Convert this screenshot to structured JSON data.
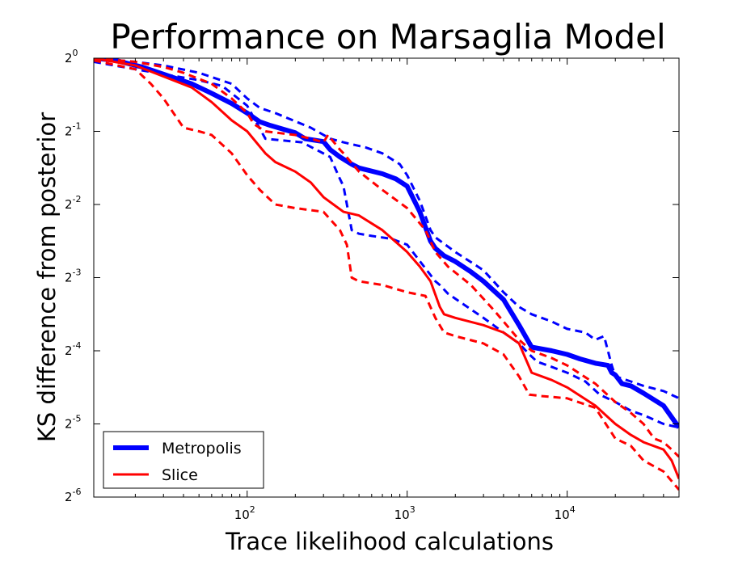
{
  "chart_data": {
    "type": "line",
    "title": "Performance on Marsaglia Model",
    "xlabel": "Trace likelihood calculations",
    "ylabel": "KS difference from posterior",
    "xscale": "log10",
    "yscale": "log2",
    "xlim": [
      11,
      50000
    ],
    "ylim": [
      -6,
      0
    ],
    "x_ticks": [
      {
        "value": 100,
        "base": "10",
        "exp": "2"
      },
      {
        "value": 1000,
        "base": "10",
        "exp": "3"
      },
      {
        "value": 10000,
        "base": "10",
        "exp": "4"
      }
    ],
    "y_ticks": [
      {
        "value": 0,
        "base": "2",
        "exp": "0"
      },
      {
        "value": -1,
        "base": "2",
        "exp": "-1"
      },
      {
        "value": -2,
        "base": "2",
        "exp": "-2"
      },
      {
        "value": -3,
        "base": "2",
        "exp": "-3"
      },
      {
        "value": -4,
        "base": "2",
        "exp": "-4"
      },
      {
        "value": -5,
        "base": "2",
        "exp": "-5"
      },
      {
        "value": -6,
        "base": "2",
        "exp": "-6"
      }
    ],
    "legend_position": "lower-left",
    "series": [
      {
        "name": "Metropolis",
        "role": "mean",
        "color": "#0000ff",
        "style": "solid-thick",
        "x": [
          11,
          15,
          22,
          30,
          45,
          60,
          80,
          100,
          120,
          140,
          200,
          230,
          300,
          330,
          380,
          450,
          500,
          700,
          850,
          1000,
          1200,
          1400,
          1500,
          1700,
          2000,
          2500,
          3000,
          4000,
          5000,
          6000,
          8000,
          10000,
          12000,
          15000,
          18000,
          19000,
          20000,
          22000,
          25000,
          30000,
          40000,
          50000
        ],
        "y": [
          0.0,
          -0.03,
          -0.12,
          -0.22,
          -0.35,
          -0.48,
          -0.62,
          -0.75,
          -0.87,
          -0.92,
          -1.02,
          -1.1,
          -1.14,
          -1.25,
          -1.35,
          -1.45,
          -1.5,
          -1.58,
          -1.65,
          -1.75,
          -2.1,
          -2.5,
          -2.6,
          -2.7,
          -2.78,
          -2.92,
          -3.05,
          -3.3,
          -3.65,
          -3.95,
          -4.0,
          -4.05,
          -4.11,
          -4.17,
          -4.2,
          -4.3,
          -4.33,
          -4.45,
          -4.48,
          -4.58,
          -4.75,
          -5.05
        ]
      },
      {
        "name": "Metropolis upper bound",
        "role": "bound",
        "color": "#0000ff",
        "style": "dashed",
        "x": [
          11,
          20,
          30,
          50,
          80,
          100,
          120,
          150,
          250,
          330,
          400,
          550,
          700,
          900,
          1000,
          1200,
          1400,
          1500,
          2000,
          3000,
          4000,
          5000,
          6000,
          8000,
          10000,
          13000,
          15000,
          17000,
          19000,
          20000,
          25000,
          30000,
          40000,
          50000
        ],
        "y": [
          0.0,
          -0.05,
          -0.1,
          -0.2,
          -0.35,
          -0.55,
          -0.68,
          -0.75,
          -0.95,
          -1.1,
          -1.15,
          -1.22,
          -1.3,
          -1.45,
          -1.6,
          -1.95,
          -2.35,
          -2.45,
          -2.65,
          -2.9,
          -3.2,
          -3.4,
          -3.5,
          -3.6,
          -3.7,
          -3.75,
          -3.85,
          -3.8,
          -4.2,
          -4.35,
          -4.42,
          -4.48,
          -4.55,
          -4.65
        ]
      },
      {
        "name": "Metropolis lower bound",
        "role": "bound",
        "color": "#0000ff",
        "style": "dashed",
        "x": [
          11,
          20,
          30,
          50,
          70,
          100,
          130,
          160,
          220,
          270,
          330,
          380,
          400,
          450,
          500,
          600,
          800,
          1000,
          1500,
          1600,
          1800,
          2200,
          3000,
          4000,
          5000,
          5800,
          6500,
          8000,
          10000,
          13000,
          16000,
          20000,
          25000,
          30000,
          40000,
          50000
        ],
        "y": [
          -0.05,
          -0.15,
          -0.22,
          -0.3,
          -0.38,
          -0.65,
          -1.1,
          -1.12,
          -1.15,
          -1.25,
          -1.35,
          -1.65,
          -1.75,
          -2.35,
          -2.4,
          -2.43,
          -2.47,
          -2.55,
          -3.05,
          -3.1,
          -3.22,
          -3.35,
          -3.55,
          -3.75,
          -3.9,
          -4.05,
          -4.15,
          -4.22,
          -4.3,
          -4.42,
          -4.6,
          -4.7,
          -4.82,
          -4.88,
          -5.0,
          -5.05
        ]
      },
      {
        "name": "Slice",
        "role": "mean",
        "color": "#ff0000",
        "style": "solid",
        "x": [
          11,
          20,
          30,
          45,
          60,
          80,
          100,
          130,
          150,
          200,
          250,
          300,
          400,
          500,
          700,
          1000,
          1200,
          1400,
          1600,
          1700,
          2000,
          3000,
          4000,
          5000,
          6000,
          8000,
          10000,
          15000,
          20000,
          25000,
          30000,
          40000,
          45000,
          50000
        ],
        "y": [
          0.0,
          -0.1,
          -0.25,
          -0.4,
          -0.6,
          -0.85,
          -1.0,
          -1.3,
          -1.42,
          -1.55,
          -1.7,
          -1.9,
          -2.1,
          -2.15,
          -2.35,
          -2.65,
          -2.85,
          -3.05,
          -3.4,
          -3.5,
          -3.55,
          -3.65,
          -3.75,
          -3.9,
          -4.3,
          -4.4,
          -4.5,
          -4.75,
          -5.0,
          -5.15,
          -5.25,
          -5.35,
          -5.5,
          -5.75
        ]
      },
      {
        "name": "Slice upper bound",
        "role": "bound",
        "color": "#ff0000",
        "style": "dashed",
        "x": [
          11,
          20,
          30,
          40,
          60,
          80,
          100,
          110,
          130,
          200,
          250,
          300,
          320,
          380,
          400,
          500,
          700,
          1000,
          1300,
          1500,
          1800,
          2500,
          3500,
          5000,
          6000,
          8000,
          10000,
          15000,
          20000,
          25000,
          30000,
          35000,
          40000,
          45000,
          50000
        ],
        "y": [
          0.0,
          -0.05,
          -0.12,
          -0.2,
          -0.35,
          -0.55,
          -0.75,
          -0.9,
          -1.0,
          -1.05,
          -1.1,
          -1.15,
          -1.05,
          -1.25,
          -1.3,
          -1.55,
          -1.8,
          -2.05,
          -2.35,
          -2.65,
          -2.85,
          -3.1,
          -3.45,
          -3.85,
          -4.0,
          -4.1,
          -4.2,
          -4.45,
          -4.7,
          -4.85,
          -5.0,
          -5.2,
          -5.25,
          -5.35,
          -5.45
        ]
      },
      {
        "name": "Slice lower bound",
        "role": "bound",
        "color": "#ff0000",
        "style": "dashed",
        "x": [
          11,
          20,
          25,
          30,
          40,
          50,
          60,
          80,
          100,
          120,
          150,
          200,
          300,
          380,
          420,
          450,
          500,
          700,
          1000,
          1300,
          1500,
          1700,
          2000,
          3000,
          4000,
          5000,
          5800,
          7000,
          10000,
          15000,
          20000,
          25000,
          30000,
          40000,
          50000
        ],
        "y": [
          -0.03,
          -0.15,
          -0.35,
          -0.55,
          -0.95,
          -1.0,
          -1.05,
          -1.3,
          -1.6,
          -1.8,
          -2.0,
          -2.05,
          -2.1,
          -2.35,
          -2.55,
          -3.0,
          -3.05,
          -3.1,
          -3.2,
          -3.25,
          -3.55,
          -3.75,
          -3.8,
          -3.9,
          -4.05,
          -4.35,
          -4.6,
          -4.62,
          -4.65,
          -4.78,
          -5.2,
          -5.3,
          -5.5,
          -5.65,
          -5.9
        ]
      }
    ],
    "legend": [
      {
        "label": "Metropolis",
        "color": "#0000ff",
        "style": "solid-thick"
      },
      {
        "label": "Slice",
        "color": "#ff0000",
        "style": "solid"
      }
    ]
  }
}
